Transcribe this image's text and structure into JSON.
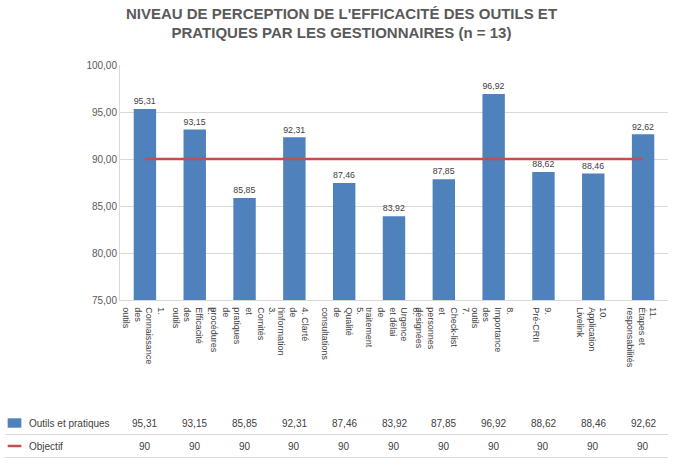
{
  "chart_data": {
    "type": "bar",
    "title": "NIVEAU DE PERCEPTION DE L'EFFICACITÉ DES OUTILS ET PRATIQUES PAR LES GESTIONNAIRES (n = 13)",
    "categories": [
      "1. Connaissance des outils",
      "2. Efficacité des outils",
      "3. Comités et pratiques de procédures",
      "4. Clarté de l'information",
      "5. Qualité de consultations",
      "6. Urgence et délai de traitement",
      "7. Check-list et personnes désignées",
      "8. Importance des outils",
      "9. Pré-CRII",
      "10. Application Livelink",
      "11. Étapes et responsabilités"
    ],
    "series": [
      {
        "name": "Outils et pratiques",
        "type": "bar",
        "color": "#4f81bd",
        "values": [
          95.31,
          93.15,
          85.85,
          92.31,
          87.46,
          83.92,
          87.85,
          96.92,
          88.62,
          88.46,
          92.62
        ],
        "value_labels": [
          "95,31",
          "93,15",
          "85,85",
          "92,31",
          "87,46",
          "83,92",
          "87,85",
          "96,92",
          "88,62",
          "88,46",
          "92,62"
        ]
      },
      {
        "name": "Objectif",
        "type": "line",
        "color": "#c0504d",
        "values": [
          90,
          90,
          90,
          90,
          90,
          90,
          90,
          90,
          90,
          90,
          90
        ]
      }
    ],
    "ylim": [
      75,
      100
    ],
    "yticks": [
      {
        "value": 75,
        "label": "75,00"
      },
      {
        "value": 80,
        "label": "80,00"
      },
      {
        "value": 85,
        "label": "85,00"
      },
      {
        "value": 90,
        "label": "90,00"
      },
      {
        "value": 95,
        "label": "95,00"
      },
      {
        "value": 100,
        "label": "100,00"
      }
    ],
    "grid": true,
    "data_labels": true
  }
}
